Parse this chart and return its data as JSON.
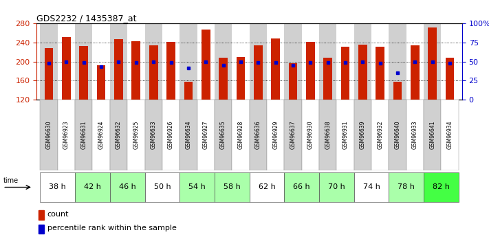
{
  "title": "GDS2232 / 1435387_at",
  "samples": [
    "GSM96630",
    "GSM96923",
    "GSM96631",
    "GSM96924",
    "GSM96632",
    "GSM96925",
    "GSM96633",
    "GSM96926",
    "GSM96634",
    "GSM96927",
    "GSM96635",
    "GSM96928",
    "GSM96636",
    "GSM96929",
    "GSM96637",
    "GSM96930",
    "GSM96638",
    "GSM96931",
    "GSM96639",
    "GSM96932",
    "GSM96640",
    "GSM96933",
    "GSM96641",
    "GSM96934"
  ],
  "counts": [
    228,
    252,
    233,
    193,
    247,
    243,
    235,
    242,
    157,
    268,
    208,
    210,
    235,
    249,
    197,
    242,
    208,
    232,
    236,
    232,
    157,
    234,
    272,
    208
  ],
  "percentiles": [
    48,
    50,
    49,
    43,
    50,
    49,
    50,
    49,
    42,
    50,
    45,
    50,
    49,
    49,
    45,
    49,
    49,
    49,
    50,
    48,
    35,
    50,
    50,
    48
  ],
  "col_bg": [
    "#d0d0d0",
    "#ffffff",
    "#d0d0d0",
    "#ffffff",
    "#d0d0d0",
    "#ffffff",
    "#d0d0d0",
    "#ffffff",
    "#d0d0d0",
    "#ffffff",
    "#d0d0d0",
    "#ffffff",
    "#d0d0d0",
    "#ffffff",
    "#d0d0d0",
    "#ffffff",
    "#d0d0d0",
    "#ffffff",
    "#d0d0d0",
    "#ffffff",
    "#d0d0d0",
    "#ffffff",
    "#d0d0d0",
    "#ffffff"
  ],
  "time_groups": [
    {
      "label": "38 h",
      "indices": [
        0,
        1
      ],
      "bg": "#ffffff"
    },
    {
      "label": "42 h",
      "indices": [
        2,
        3
      ],
      "bg": "#aaffaa"
    },
    {
      "label": "46 h",
      "indices": [
        4,
        5
      ],
      "bg": "#aaffaa"
    },
    {
      "label": "50 h",
      "indices": [
        6,
        7
      ],
      "bg": "#ffffff"
    },
    {
      "label": "54 h",
      "indices": [
        8,
        9
      ],
      "bg": "#aaffaa"
    },
    {
      "label": "58 h",
      "indices": [
        10,
        11
      ],
      "bg": "#aaffaa"
    },
    {
      "label": "62 h",
      "indices": [
        12,
        13
      ],
      "bg": "#ffffff"
    },
    {
      "label": "66 h",
      "indices": [
        14,
        15
      ],
      "bg": "#aaffaa"
    },
    {
      "label": "70 h",
      "indices": [
        16,
        17
      ],
      "bg": "#aaffaa"
    },
    {
      "label": "74 h",
      "indices": [
        18,
        19
      ],
      "bg": "#ffffff"
    },
    {
      "label": "78 h",
      "indices": [
        20,
        21
      ],
      "bg": "#aaffaa"
    },
    {
      "label": "82 h",
      "indices": [
        22,
        23
      ],
      "bg": "#44ff44"
    }
  ],
  "y_min": 120,
  "y_max": 280,
  "y_ticks": [
    120,
    160,
    200,
    240,
    280
  ],
  "right_y_ticks": [
    0,
    25,
    50,
    75,
    100
  ],
  "right_y_labels": [
    "0",
    "25",
    "50",
    "75",
    "100%"
  ],
  "bar_color": "#cc2200",
  "dot_color": "#0000cc",
  "bg_plot": "#ffffff",
  "grid_color": "#000000"
}
